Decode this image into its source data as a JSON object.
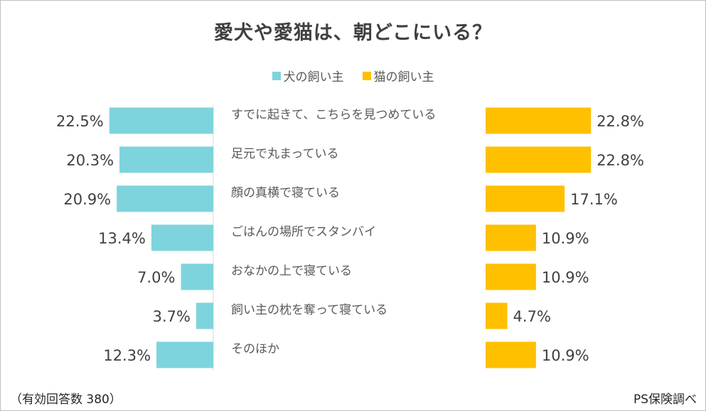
{
  "chart_data": {
    "type": "bar",
    "title": "愛犬や愛猫は、朝どこにいる？",
    "categories": [
      "すでに起きて、こちらを見つめている",
      "足元で丸まっている",
      "顔の真横で寝ている",
      "ごはんの場所でスタンバイ",
      "おなかの上で寝ている",
      "飼い主の枕を奪って寝ている",
      "そのほか"
    ],
    "series": [
      {
        "name": "犬の飼い主",
        "color": "#7ed4dc",
        "values": [
          22.5,
          20.3,
          20.9,
          13.4,
          7.0,
          3.7,
          12.3
        ],
        "labels": [
          "22.5%",
          "20.3%",
          "20.9%",
          "13.4%",
          "7.0%",
          "3.7%",
          "12.3%"
        ]
      },
      {
        "name": "猫の飼い主",
        "color": "#ffc000",
        "values": [
          22.8,
          22.8,
          17.1,
          10.9,
          10.9,
          4.7,
          10.9
        ],
        "labels": [
          "22.8%",
          "22.8%",
          "17.1%",
          "10.9%",
          "10.9%",
          "4.7%",
          "10.9%"
        ]
      }
    ],
    "unit": "%",
    "legend": "top-center"
  },
  "footnote": "（有効回答数 380）",
  "source": "PS保険調べ"
}
